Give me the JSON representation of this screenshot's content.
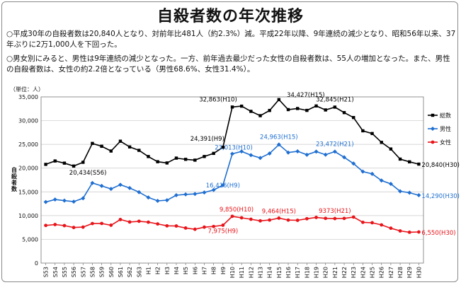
{
  "title": "自殺者数の年次推移",
  "paragraphs": [
    "○平成30年の自殺者数は20,840人となり、対前年比481人（約2.3%）減。平成22年以降、9年連続の減少となり、昭和56年以来、37年ぶりに2万1,000人を下回った。",
    "○男女別にみると、男性は9年連続の減少となった。一方、前年過去最少だった女性の自殺者数は、55人の増加となった。また、男性の自殺者数は、女性の約2.2倍となっている（男性68.6%、女性31.4%）。"
  ],
  "chart_data": {
    "type": "line",
    "unit_label": "（単位：人）",
    "ylabel": "自殺者数",
    "ylim": [
      0,
      35000
    ],
    "y_ticks": [
      "0",
      "5,000",
      "10,000",
      "15,000",
      "20,000",
      "25,000",
      "30,000",
      "35,000"
    ],
    "grid": true,
    "legend_position": "right",
    "categories": [
      "S53",
      "S54",
      "S55",
      "S56",
      "S57",
      "S58",
      "S59",
      "S60",
      "S61",
      "S62",
      "S63",
      "H1",
      "H2",
      "H3",
      "H4",
      "H5",
      "H6",
      "H7",
      "H8",
      "H9",
      "H10",
      "H11",
      "H12",
      "H13",
      "H14",
      "H15",
      "H16",
      "H17",
      "H18",
      "H19",
      "H20",
      "H21",
      "H22",
      "H23",
      "H24",
      "H25",
      "H26",
      "H27",
      "H28",
      "H29",
      "H30"
    ],
    "series": [
      {
        "name": "総数",
        "color": "#000000",
        "values": [
          20788,
          21503,
          21048,
          20434,
          21228,
          25202,
          24596,
          23599,
          25667,
          24460,
          23742,
          22436,
          21346,
          21084,
          22104,
          21851,
          21679,
          22445,
          23104,
          24391,
          32863,
          33048,
          31957,
          31042,
          32143,
          34427,
          32325,
          32552,
          32155,
          33093,
          32249,
          32845,
          31690,
          30651,
          27858,
          27283,
          25427,
          24025,
          21897,
          21321,
          20840
        ]
      },
      {
        "name": "男性",
        "color": "#1f6fd1",
        "values": [
          12859,
          13386,
          13155,
          12942,
          13654,
          16876,
          16251,
          15624,
          16497,
          15802,
          14934,
          13818,
          13102,
          13242,
          14296,
          14468,
          14560,
          14874,
          15393,
          16416,
          23013,
          23512,
          22727,
          22144,
          23080,
          24963,
          23272,
          23540,
          22813,
          23478,
          22831,
          23472,
          22283,
          20955,
          19273,
          18787,
          17386,
          16681,
          15121,
          14826,
          14290
        ]
      },
      {
        "name": "女性",
        "color": "#e8141a",
        "values": [
          7929,
          8117,
          7893,
          7492,
          7574,
          8326,
          8345,
          7975,
          9170,
          8658,
          8808,
          8618,
          8244,
          7842,
          7808,
          7383,
          7119,
          7571,
          7711,
          7975,
          9850,
          9536,
          9230,
          8898,
          9063,
          9464,
          9053,
          9012,
          9342,
          9615,
          9418,
          9373,
          9407,
          9696,
          8585,
          8496,
          8041,
          7344,
          6776,
          6495,
          6550
        ]
      }
    ],
    "annotations": [
      {
        "text": "32,863(H10)",
        "series": "総数",
        "index": 20,
        "color": "#000000"
      },
      {
        "text": "34,427(H15)",
        "series": "総数",
        "index": 25,
        "color": "#000000"
      },
      {
        "text": "32,845(H21)",
        "series": "総数",
        "index": 31,
        "color": "#000000"
      },
      {
        "text": "24,391(H9)",
        "series": "総数",
        "index": 19,
        "color": "#000000"
      },
      {
        "text": "20,434(S56)",
        "series": "総数",
        "index": 3,
        "color": "#000000"
      },
      {
        "text": "20,840(H30)",
        "series": "総数",
        "index": 40,
        "color": "#000000"
      },
      {
        "text": "23,013(H10)",
        "series": "男性",
        "index": 20,
        "color": "#1f6fd1"
      },
      {
        "text": "24,963(H15)",
        "series": "男性",
        "index": 25,
        "color": "#1f6fd1"
      },
      {
        "text": "23,472(H21)",
        "series": "男性",
        "index": 31,
        "color": "#1f6fd1"
      },
      {
        "text": "16,416(H9)",
        "series": "男性",
        "index": 19,
        "color": "#1f6fd1"
      },
      {
        "text": "14,290(H30)",
        "series": "男性",
        "index": 40,
        "color": "#1f6fd1"
      },
      {
        "text": "9,850(H10)",
        "series": "女性",
        "index": 20,
        "color": "#e8141a"
      },
      {
        "text": "9,464(H15)",
        "series": "女性",
        "index": 25,
        "color": "#e8141a"
      },
      {
        "text": "9373(H21)",
        "series": "女性",
        "index": 31,
        "color": "#e8141a"
      },
      {
        "text": "7,975(H9)",
        "series": "女性",
        "index": 19,
        "color": "#e8141a"
      },
      {
        "text": "6,550(H30)",
        "series": "女性",
        "index": 40,
        "color": "#e8141a"
      }
    ]
  }
}
